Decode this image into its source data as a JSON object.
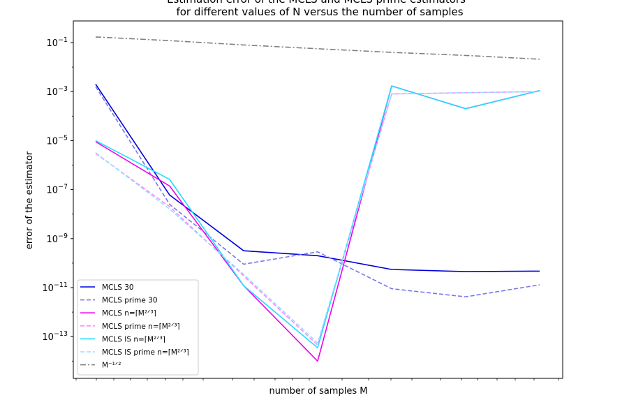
{
  "chart_data": {
    "type": "line",
    "title": "Estimation error of the MCLS and MCLS prime estimators",
    "subtitle": "for different values of N versus the number of samples",
    "xlabel": "number of samples M",
    "ylabel": "error of the estimator",
    "yscale": "log",
    "xscale": "log",
    "ylim": [
      3e-15,
      1.0
    ],
    "y_ticks": [
      {
        "value": 0.1,
        "base": "10",
        "exp": "−1"
      },
      {
        "value": 0.001,
        "base": "10",
        "exp": "−3"
      },
      {
        "value": 1e-05,
        "base": "10",
        "exp": "−5"
      },
      {
        "value": 1e-07,
        "base": "10",
        "exp": "−7"
      },
      {
        "value": 1e-09,
        "base": "10",
        "exp": "−9"
      },
      {
        "value": 1e-11,
        "base": "10",
        "exp": "−11"
      },
      {
        "value": 1e-13,
        "base": "10",
        "exp": "−13"
      }
    ],
    "x_points": 7,
    "grid": false,
    "legend_position": "lower-left",
    "series": [
      {
        "name": "MCLS 30",
        "color": "#0000dd",
        "dash": "solid",
        "width": 1.6,
        "values": [
          0.002,
          6e-08,
          3.2e-10,
          2e-10,
          5.5e-11,
          4.5e-11,
          4.7e-11
        ]
      },
      {
        "name": "MCLS prime 30",
        "color": "#7777ee",
        "dash": "dashed",
        "width": 1.6,
        "values": [
          0.0016,
          2.5e-08,
          9e-11,
          2.9e-10,
          9e-12,
          4.2e-12,
          1.3e-11
        ]
      },
      {
        "name": "MCLS n=⌈M²ᐟ³⌉",
        "color": "#ee00ee",
        "dash": "solid",
        "width": 1.6,
        "values": [
          9e-06,
          1.4e-07,
          1.2e-11,
          1e-14,
          0.0017,
          0.0002,
          0.0011
        ]
      },
      {
        "name": "MCLS prime n=⌈M²ᐟ³⌉",
        "color": "#ff88ff",
        "dash": "dashed",
        "width": 1.6,
        "values": [
          3e-06,
          2e-08,
          3e-11,
          4.5e-14,
          0.0008,
          0.0009,
          0.001
        ]
      },
      {
        "name": "MCLS IS n=⌈M²ᐟ³⌉",
        "color": "#22ddff",
        "dash": "solid",
        "width": 1.6,
        "values": [
          1e-05,
          2.6e-07,
          1.2e-11,
          3.5e-14,
          0.0017,
          0.0002,
          0.0011
        ]
      },
      {
        "name": "MCLS IS prime n=⌈M²ᐟ³⌉",
        "color": "#99ddff",
        "dash": "dashed",
        "width": 1.6,
        "values": [
          3.2e-06,
          1.6e-08,
          3.5e-11,
          5.5e-14,
          0.0008,
          0.0009,
          0.001
        ]
      },
      {
        "name": "M⁻¹ᐟ²",
        "color": "#808080",
        "dash": "dashdot",
        "width": 1.6,
        "values": [
          0.17,
          0.12,
          0.08,
          0.056,
          0.04,
          0.03,
          0.021
        ]
      }
    ]
  }
}
